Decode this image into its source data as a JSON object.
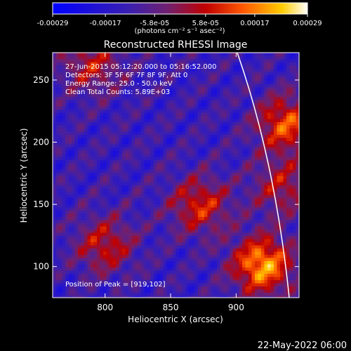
{
  "chart_data": {
    "type": "heatmap",
    "title": "Reconstructed RHESSI Image",
    "xlabel": "Heliocentric X (arcsec)",
    "ylabel": "Heliocentric Y (arcsec)",
    "xlim": [
      760,
      948
    ],
    "ylim": [
      75,
      272
    ],
    "x_ticks": [
      "800",
      "850",
      "900"
    ],
    "x_tick_values": [
      800,
      850,
      900
    ],
    "y_ticks": [
      "100",
      "150",
      "200",
      "250"
    ],
    "y_tick_values": [
      100,
      150,
      200,
      250
    ],
    "colorbar": {
      "range": [
        -0.00029,
        0.00029
      ],
      "tick_labels": [
        "-0.00029",
        "-0.00017",
        "-5.8e-05",
        "5.8e-05",
        "0.00017",
        "0.00029"
      ],
      "tick_values": [
        -0.00029,
        -0.00017,
        -5.8e-05,
        5.8e-05,
        0.00017,
        0.00029
      ],
      "units_label": "(photons cm⁻² s⁻¹ asec⁻²)"
    },
    "annotations": [
      "27-Jun-2015 05:12:20.000 to 05:16:52.000",
      "Detectors: 3F 5F 6F 7F 8F 9F, Att 0",
      "Energy Range: 25.0 - 50.0 keV",
      "Clean     Total Counts: 5.89E+03"
    ],
    "peak_label": "Position of Peak = [919,102]",
    "peak": [
      919,
      102
    ],
    "sources": [
      {
        "x": 920,
        "y": 102,
        "value": 0.00029
      },
      {
        "x": 938,
        "y": 215,
        "value": 0.00022
      },
      {
        "x": 872,
        "y": 150,
        "value": 0.00018
      },
      {
        "x": 800,
        "y": 118,
        "value": 0.00016
      },
      {
        "x": 790,
        "y": 262,
        "value": 0.00015
      },
      {
        "x": 935,
        "y": 165,
        "value": 0.00014
      }
    ],
    "colors": {
      "colormap": [
        "#0000ff",
        "#3a1fb0",
        "#702070",
        "#c00000",
        "#ff5a00",
        "#ffcc00",
        "#ffffff"
      ],
      "limb_line": "#ffffff"
    }
  },
  "footer": {
    "timestamp": "22-May-2022 06:00"
  }
}
